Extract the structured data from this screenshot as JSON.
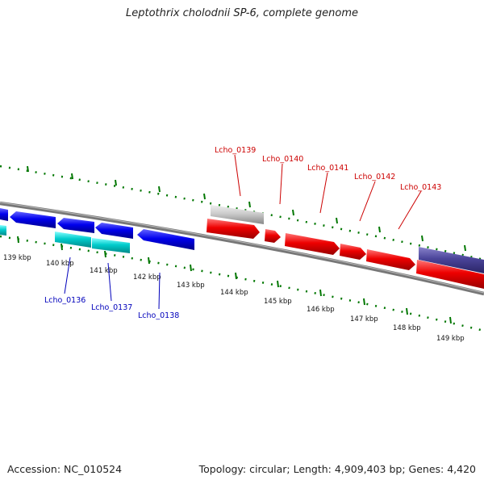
{
  "title": "Leptothrix cholodnii SP-6, complete genome",
  "footer": {
    "accession": "Accession: NC_010524",
    "summary": "Topology: circular; Length: 4,909,403 bp; Genes: 4,420"
  },
  "colors": {
    "forward_strand": "#ee0000",
    "reverse_strand": "#0000ee",
    "rna": "#00cccc",
    "other_gene": "#cccccc",
    "pseudo_gene": "#4a4499",
    "backbone": "#777777",
    "tick": "#007700",
    "forward_label": "#cc0000",
    "reverse_label": "#0000bb"
  },
  "scale": {
    "tick_labels": [
      "139 kbp",
      "140 kbp",
      "141 kbp",
      "142 kbp",
      "143 kbp",
      "144 kbp",
      "145 kbp",
      "146 kbp",
      "147 kbp",
      "148 kbp",
      "149 kbp"
    ]
  },
  "genes": {
    "labels_forward": [
      "Lcho_0139",
      "Lcho_0140",
      "Lcho_0141",
      "Lcho_0142",
      "Lcho_0143"
    ],
    "labels_reverse": [
      "Lcho_0136",
      "Lcho_0137",
      "Lcho_0138"
    ]
  }
}
